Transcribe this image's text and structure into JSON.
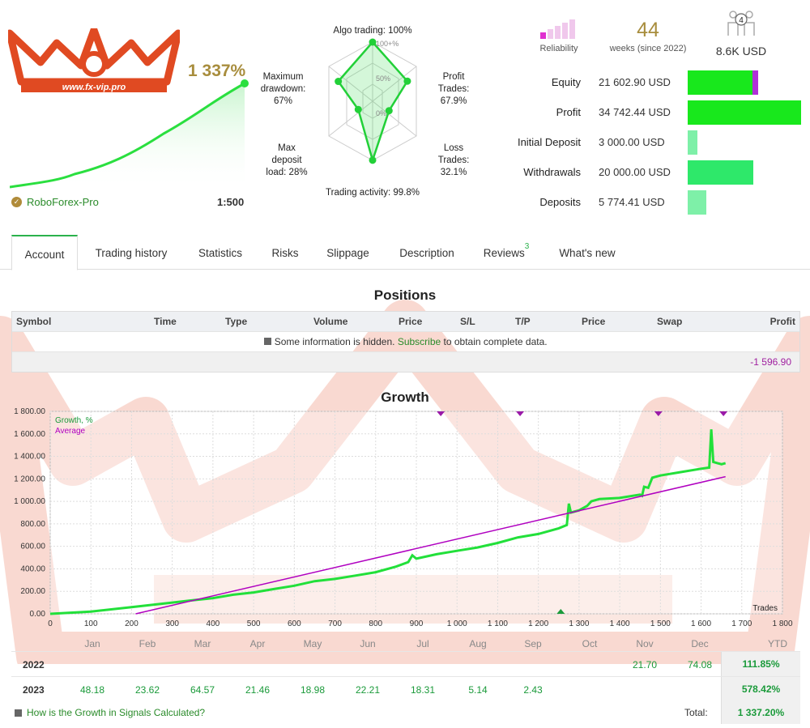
{
  "header": {
    "growth_total": "1 337%",
    "broker": "RoboForex-Pro",
    "leverage": "1:500",
    "logo_text": "www.fx-vip.pro"
  },
  "radar": {
    "algo_label": "Algo trading: 100%",
    "profit_label1": "Profit",
    "profit_label2": "Trades:",
    "profit_label3": "67.9%",
    "loss_label1": "Loss",
    "loss_label2": "Trades:",
    "loss_label3": "32.1%",
    "activity_label": "Trading activity: 99.8%",
    "deposit_label1": "Max",
    "deposit_label2": "deposit",
    "deposit_label3": "load: 28%",
    "drawdown_label1": "Maximum",
    "drawdown_label2": "drawdown:",
    "drawdown_label3": "67%",
    "ring_100": "100+%",
    "ring_50": "50%",
    "ring_0": "0%",
    "values": {
      "algo": 100,
      "profit": 67.9,
      "loss": 32.1,
      "activity": 99.8,
      "deposit": 28,
      "drawdown": 67
    }
  },
  "summary": {
    "reliability_label": "Reliability",
    "weeks_value": "44",
    "weeks_label": "weeks (since 2022)",
    "subscribers_count": "4",
    "subscribers_funds": "8.6K USD"
  },
  "stats": [
    {
      "label": "Equity",
      "value": "21 602.90 USD",
      "fraction": 0.62
    },
    {
      "label": "Profit",
      "value": "34 742.44 USD",
      "fraction": 1.0
    },
    {
      "label": "Initial Deposit",
      "value": "3 000.00 USD",
      "fraction": 0.086
    },
    {
      "label": "Withdrawals",
      "value": "20 000.00 USD",
      "fraction": 0.576
    },
    {
      "label": "Deposits",
      "value": "5 774.41 USD",
      "fraction": 0.166
    }
  ],
  "tabs": [
    {
      "label": "Account",
      "active": true
    },
    {
      "label": "Trading history"
    },
    {
      "label": "Statistics"
    },
    {
      "label": "Risks"
    },
    {
      "label": "Slippage"
    },
    {
      "label": "Description"
    },
    {
      "label": "Reviews",
      "badge": "3"
    },
    {
      "label": "What's new"
    }
  ],
  "positions": {
    "title": "Positions",
    "columns": [
      "Symbol",
      "Time",
      "Type",
      "Volume",
      "Price",
      "S/L",
      "T/P",
      "Price",
      "Swap",
      "Profit"
    ],
    "info_pre": "Some information is hidden.",
    "info_link": "Subscribe",
    "info_post": "to obtain complete data.",
    "total_profit": "-1 596.90"
  },
  "growth": {
    "title": "Growth",
    "legend_growth": "Growth, %",
    "legend_average": "Average",
    "x_axis_label": "Trades"
  },
  "chart_data": {
    "type": "line",
    "title": "Growth",
    "xlabel": "Trades",
    "ylabel": "",
    "xlim": [
      0,
      1800
    ],
    "ylim": [
      0,
      1800
    ],
    "x_ticks": [
      "0",
      "100",
      "200",
      "300",
      "400",
      "500",
      "600",
      "700",
      "800",
      "900",
      "1 000",
      "1 100",
      "1 200",
      "1 300",
      "1 400",
      "1 500",
      "1 600",
      "1 700",
      "1 800"
    ],
    "y_ticks": [
      "0.00",
      "200.00",
      "400.00",
      "600.00",
      "800.00",
      "1 000.00",
      "1 200.00",
      "1 400.00",
      "1 600.00",
      "1 800.00"
    ],
    "series": [
      {
        "name": "Growth, %",
        "color": "#22e03a",
        "x": [
          0,
          100,
          200,
          300,
          350,
          400,
          450,
          500,
          550,
          600,
          650,
          700,
          750,
          800,
          850,
          880,
          890,
          900,
          950,
          1000,
          1050,
          1100,
          1150,
          1200,
          1250,
          1270,
          1275,
          1280,
          1300,
          1320,
          1330,
          1350,
          1400,
          1450,
          1455,
          1460,
          1470,
          1480,
          1500,
          1550,
          1600,
          1620,
          1625,
          1630,
          1640,
          1650,
          1660
        ],
        "y": [
          0,
          20,
          60,
          100,
          120,
          140,
          170,
          190,
          220,
          250,
          290,
          310,
          340,
          370,
          420,
          460,
          520,
          490,
          530,
          560,
          590,
          630,
          680,
          710,
          760,
          790,
          980,
          900,
          920,
          960,
          1000,
          1020,
          1030,
          1060,
          1050,
          1130,
          1120,
          1210,
          1230,
          1260,
          1290,
          1300,
          1640,
          1350,
          1340,
          1330,
          1340
        ]
      },
      {
        "name": "Average",
        "color": "#b000c0",
        "x": [
          210,
          1660
        ],
        "y": [
          0,
          1220
        ]
      }
    ],
    "markers_top": [
      960,
      1155,
      1495,
      1655
    ],
    "marker_bottom": 1255
  },
  "monthly": {
    "months": [
      "Jan",
      "Feb",
      "Mar",
      "Apr",
      "May",
      "Jun",
      "Jul",
      "Aug",
      "Sep",
      "Oct",
      "Nov",
      "Dec",
      "YTD"
    ],
    "rows": [
      {
        "year": "2022",
        "values": [
          "",
          "",
          "",
          "",
          "",
          "",
          "",
          "",
          "",
          "",
          "21.70",
          "74.08"
        ],
        "ytd": "111.85%"
      },
      {
        "year": "2023",
        "values": [
          "48.18",
          "23.62",
          "64.57",
          "21.46",
          "18.98",
          "22.21",
          "18.31",
          "5.14",
          "2.43",
          "",
          "",
          ""
        ],
        "ytd": "578.42%"
      }
    ],
    "footer_link": "How is the Growth in Signals Calculated?",
    "total_label": "Total:",
    "total_value": "1 337.20%"
  }
}
